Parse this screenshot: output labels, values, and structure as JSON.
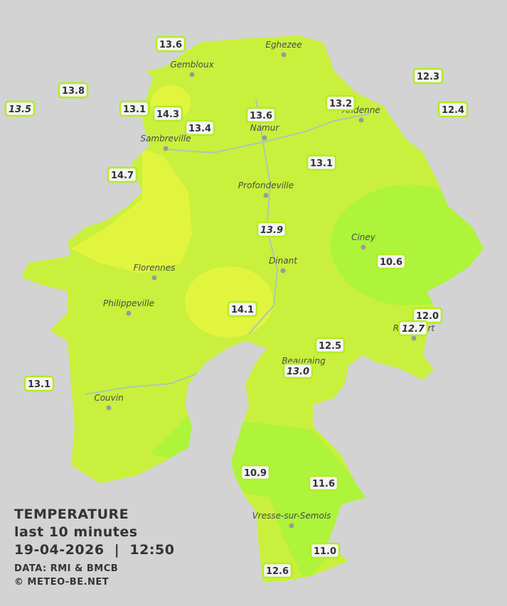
{
  "cities": [
    "Eghezee",
    "Gembloux",
    "Andenne",
    "Namur",
    "Sambreville",
    "Profondeville",
    "Ciney",
    "Florennes",
    "Dinant",
    "Philippeville",
    "Rochefort",
    "Beauraing",
    "Couvin",
    "Vresse-sur-Semois"
  ],
  "stations": [
    "13.6",
    "13.8",
    "13.5",
    "13.1",
    "14.3",
    "13.4",
    "13.6",
    "13.2",
    "12.3",
    "12.4",
    "14.7",
    "13.1",
    "13.9",
    "10.6",
    "14.1",
    "12.0",
    "12.7",
    "12.5",
    "13.0",
    "13.1",
    "10.9",
    "11.6",
    "11.0",
    "12.6"
  ],
  "legend": {
    "title": "TEMPERATURE",
    "period": "last 10 minutes",
    "timestamp": "19-04-2026  |  12:50",
    "source": "DATA: RMI & BMCB",
    "credit": "© METEO-BE.NET"
  }
}
